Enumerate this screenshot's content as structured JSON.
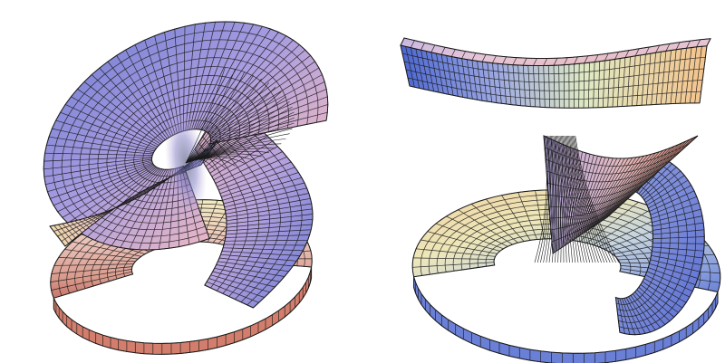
{
  "figure": {
    "background_color": "#ffffff",
    "mesh_line_color": "#1a1a1a",
    "surfaces": [
      {
        "name": "left-surface",
        "description_free": true,
        "colors": {
          "blue": "#6f7fd6",
          "lavender": "#b9a8e0",
          "pink": "#e7b3c1",
          "peach": "#f1c3a0",
          "cream": "#f3ebb7",
          "salmon": "#d9826f"
        }
      },
      {
        "name": "right-surface",
        "description_free": true,
        "colors": {
          "blue": "#5f78d8",
          "lavender": "#c0acdf",
          "pink": "#eab1b5",
          "peach": "#f0c196",
          "cream": "#eef2c0",
          "salmon": "#d88670"
        }
      }
    ]
  }
}
